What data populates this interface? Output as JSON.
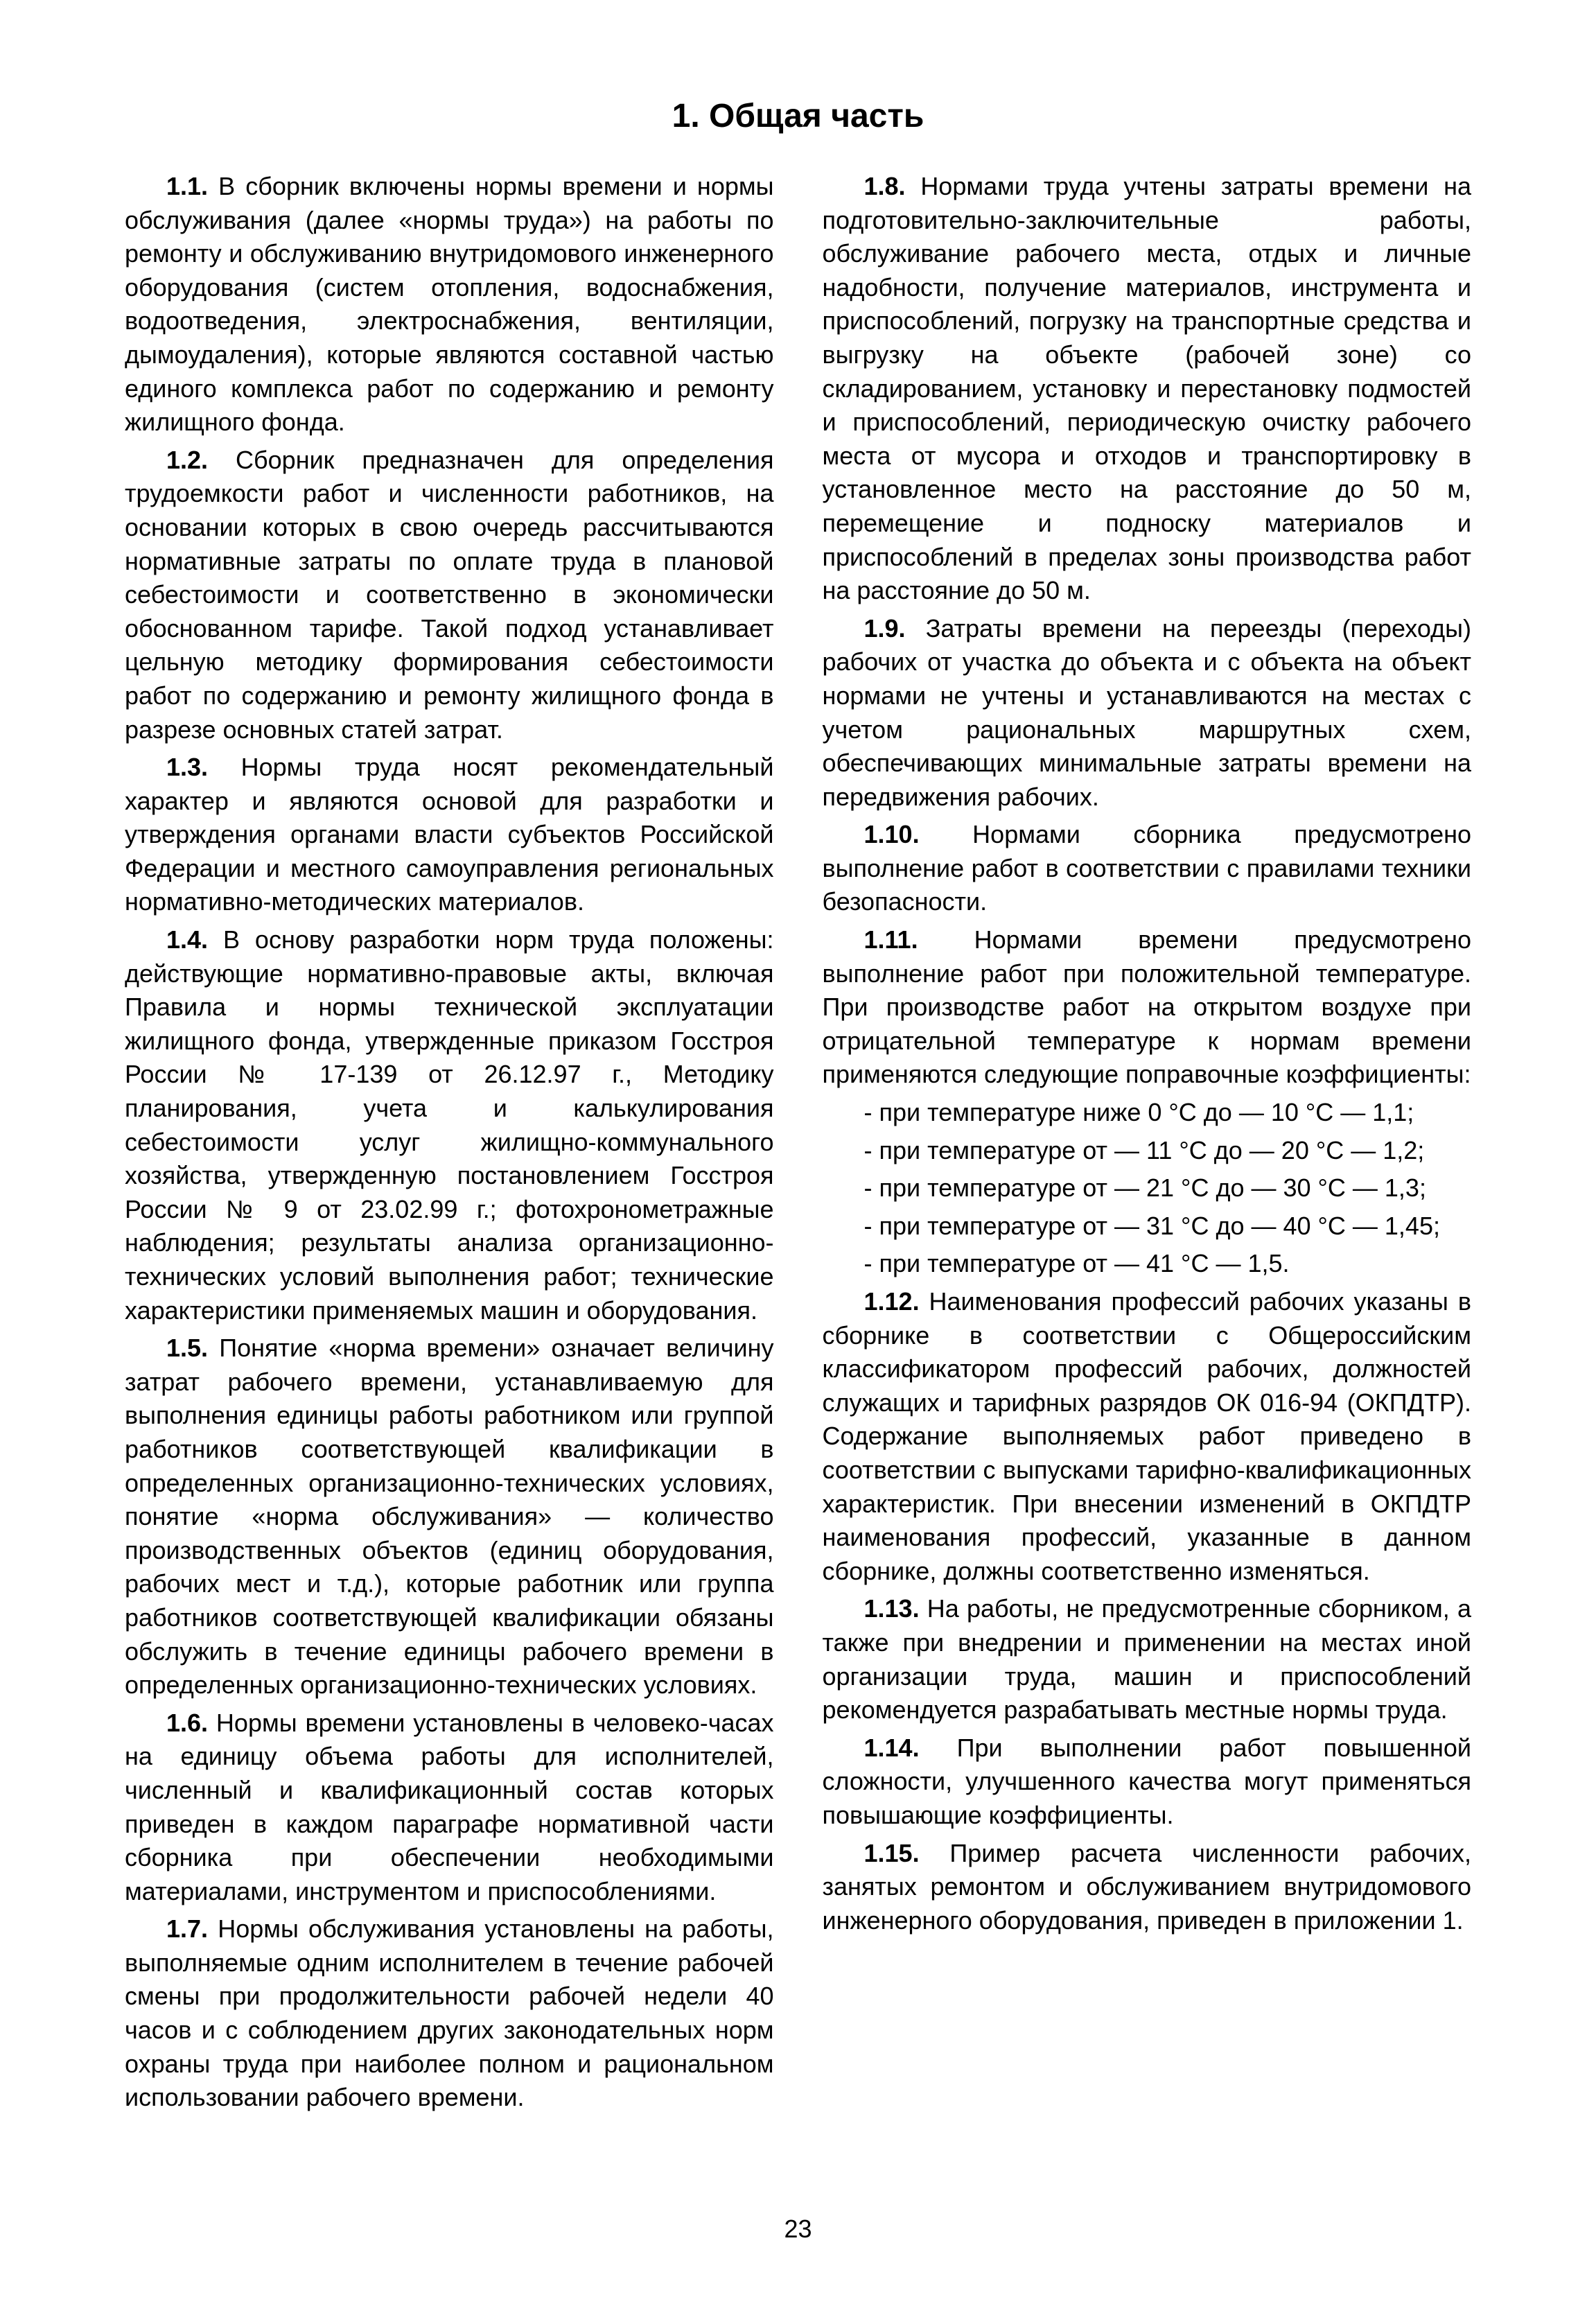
{
  "title": "1. Общая часть",
  "page_number": "23",
  "paragraphs": [
    {
      "num": "1.1.",
      "text": "В сборник включены нормы времени и нормы обслуживания (далее «нормы труда») на работы по ремонту и обслуживанию внутридомового инженерного оборудования (систем отопления, водоснабжения, водоотведения, электроснабжения, вентиляции, дымоудаления), которые являются составной частью единого комплекса работ по содержанию и ремонту жилищного фонда."
    },
    {
      "num": "1.2.",
      "text": "Сборник предназначен для определения трудоемкости работ и численности работников, на основании которых в свою очередь рассчитываются нормативные затраты по оплате труда в плановой себестоимости и соответственно в экономически обоснованном тарифе. Такой подход устанавливает цельную методику формирования себестоимости работ по содержанию и ремонту жилищного фонда в разрезе основных статей затрат."
    },
    {
      "num": "1.3.",
      "text": "Нормы труда носят рекомендательный характер и являются основой для разработки и утверждения органами власти субъектов Российской Федерации и местного самоуправления региональных нормативно-методических материалов."
    },
    {
      "num": "1.4.",
      "text": "В основу разработки норм труда положены: действующие нормативно-правовые акты, включая Правила и нормы технической эксплуатации жилищного фонда, утвержденные приказом Госстроя России № 17-139 от 26.12.97 г., Методику планирования, учета и калькулирования себестоимости услуг жилищно-коммунального хозяйства, утвержденную постановлением Госстроя России № 9 от 23.02.99 г.; фотохронометражные наблюдения; результаты анализа организационно-технических условий выполнения работ; технические характеристики применяемых машин и оборудования."
    },
    {
      "num": "1.5.",
      "text": "Понятие «норма времени» означает величину затрат рабочего времени, устанавливаемую для выполнения единицы работы работником или группой работников соответствующей квалификации в определенных организационно-технических условиях, понятие «норма обслуживания» — количество производственных объектов (единиц оборудования, рабочих мест и т.д.), которые работник или группа работников соответствующей квалификации обязаны обслужить в течение единицы рабочего времени в определенных организационно-технических условиях."
    },
    {
      "num": "1.6.",
      "text": "Нормы времени установлены в человеко-часах на единицу объема работы для исполнителей, численный и квалификационный состав которых приведен в каждом параграфе нормативной части сборника при обеспечении необходимыми материалами, инструментом и приспособлениями."
    },
    {
      "num": "1.7.",
      "text": "Нормы обслуживания установлены на работы, выполняемые одним исполнителем в течение рабочей смены при продолжительности рабочей недели 40 часов и с соблюдением других законодательных норм охраны труда при наиболее полном и рациональном использовании рабочего времени."
    },
    {
      "num": "1.8.",
      "text": "Нормами труда учтены затраты времени на подготовительно-заключительные работы, обслуживание рабочего места, отдых и личные надобности, получение материалов, инструмента и приспособлений, погрузку на транспортные средства и выгрузку на объекте (рабочей зоне) со складированием, установку и перестановку подмостей и приспособлений, периодическую очистку рабочего места от мусора и отходов и транспортировку в установленное место на расстояние до 50 м, перемещение и подноску материалов и приспособлений в пределах зоны производства работ на расстояние до 50 м."
    },
    {
      "num": "1.9.",
      "text": "Затраты времени на переезды (переходы) рабочих от участка до объекта и с объекта на объект нормами не учтены и устанавливаются на местах с учетом рациональных маршрутных схем, обеспечивающих минимальные затраты времени на передвижения рабочих."
    },
    {
      "num": "1.10.",
      "text": "Нормами сборника предусмотрено выполнение работ в соответствии с правилами техники безопасности."
    },
    {
      "num": "1.11.",
      "text": "Нормами времени предусмотрено выполнение работ при положительной температуре. При производстве работ на открытом воздухе при отрицательной температуре к нормам времени применяются следующие поправочные коэффициенты:"
    },
    {
      "sub": true,
      "text": "- при температуре ниже 0 °С до — 10 °С — 1,1;"
    },
    {
      "sub": true,
      "text": "- при температуре от — 11 °С до — 20 °С — 1,2;"
    },
    {
      "sub": true,
      "text": "- при температуре от — 21 °С до — 30 °С — 1,3;"
    },
    {
      "sub": true,
      "text": "- при температуре от — 31 °С до — 40 °С — 1,45;"
    },
    {
      "sub": true,
      "text": "- при температуре от — 41 °С — 1,5."
    },
    {
      "num": "1.12.",
      "text": "Наименования профессий рабочих указаны в сборнике в соответствии с Общероссийским классификатором профессий рабочих, должностей служащих и тарифных разрядов ОК 016-94 (ОКПДТР). Содержание выполняемых работ приведено в соответствии с выпусками тарифно-квалификационных характеристик. При внесении изменений в ОКПДТР наименования профессий, указанные в данном сборнике, должны соответственно изменяться."
    },
    {
      "num": "1.13.",
      "text": "На работы, не предусмотренные сборником, а также при внедрении и применении на местах иной организации труда, машин и приспособлений рекомендуется разрабатывать местные нормы труда."
    },
    {
      "num": "1.14.",
      "text": "При выполнении работ повышенной сложности, улучшенного качества могут применяться повышающие коэффициенты."
    },
    {
      "num": "1.15.",
      "text": "Пример расчета численности рабочих, занятых ремонтом и обслуживанием внутридомового инженерного оборудования, приведен в приложении 1."
    }
  ]
}
